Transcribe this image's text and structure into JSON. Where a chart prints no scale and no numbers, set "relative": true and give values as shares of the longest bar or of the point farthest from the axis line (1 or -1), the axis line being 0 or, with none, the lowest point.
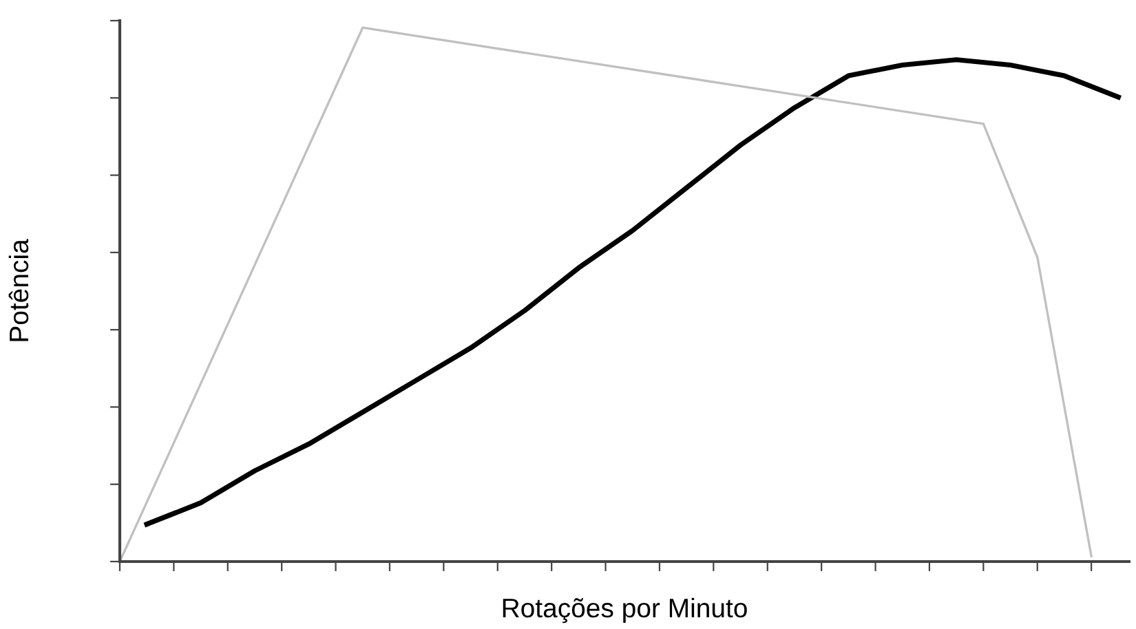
{
  "chart_data": {
    "type": "line",
    "relative": true,
    "xlabel": "Rotações por Minuto",
    "ylabel": "Potência",
    "tick_labels": false,
    "grid": false,
    "legend": false,
    "marker": "none",
    "line_style": "solid",
    "categories": [
      null,
      null,
      null,
      null,
      null,
      null,
      null,
      null,
      null,
      null,
      null,
      null,
      null,
      null,
      null,
      null,
      null,
      null,
      null,
      null,
      null,
      null,
      null,
      null,
      null,
      null,
      null,
      null,
      null,
      null,
      null,
      null,
      null,
      null,
      null,
      null,
      null,
      null
    ],
    "series": [
      {
        "color": "#000000",
        "values": [
          null,
          0.07,
          null,
          0.11,
          null,
          0.17,
          null,
          0.22,
          null,
          0.28,
          null,
          0.34,
          null,
          0.4,
          null,
          0.47,
          null,
          0.55,
          null,
          0.62,
          null,
          0.7,
          null,
          0.78,
          null,
          0.85,
          null,
          0.91,
          null,
          0.93,
          null,
          0.94,
          null,
          0.93,
          null,
          0.91,
          null,
          0.87
        ]
      },
      {
        "color": "#c0c0c0",
        "values": [
          0,
          null,
          null,
          null,
          null,
          null,
          null,
          null,
          null,
          1,
          null,
          null,
          null,
          null,
          null,
          null,
          null,
          null,
          null,
          null,
          null,
          null,
          null,
          null,
          null,
          null,
          null,
          null,
          null,
          null,
          null,
          null,
          0.82,
          null,
          0.57,
          null,
          0.01,
          null
        ]
      }
    ]
  }
}
